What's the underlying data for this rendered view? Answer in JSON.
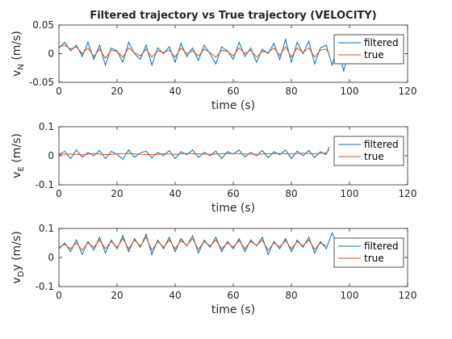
{
  "chart_data": [
    {
      "type": "line",
      "title": "Filtered trajectory vs True trajectory (VELOCITY)",
      "xlabel": "time (s)",
      "ylabel": {
        "main": "v",
        "sub": "N",
        "rest": " (m/s)"
      },
      "xlim": [
        0,
        120
      ],
      "ylim": [
        -0.05,
        0.05
      ],
      "xticks": [
        0,
        20,
        40,
        60,
        80,
        100,
        120
      ],
      "yticks": [
        -0.05,
        0,
        0.05
      ],
      "ytick_labels": [
        "-0.05",
        "0",
        "0.05"
      ],
      "legend": "top-right",
      "grid": false,
      "series": [
        {
          "name": "filtered",
          "color": "#0072BD",
          "x": [
            0,
            2,
            4,
            6,
            8,
            10,
            12,
            14,
            16,
            18,
            20,
            22,
            24,
            26,
            28,
            30,
            32,
            34,
            36,
            38,
            40,
            42,
            44,
            46,
            48,
            50,
            52,
            54,
            56,
            58,
            60,
            62,
            64,
            66,
            68,
            70,
            72,
            74,
            76,
            78,
            80,
            82,
            84,
            86,
            88,
            90,
            92,
            94,
            96,
            98,
            100,
            102,
            104,
            105
          ],
          "y": [
            0.01,
            0.02,
            0.005,
            0.015,
            -0.005,
            0.02,
            -0.01,
            0.015,
            -0.02,
            0.01,
            0.005,
            -0.015,
            0.02,
            0.0,
            -0.01,
            0.015,
            -0.02,
            0.01,
            0.0,
            0.012,
            -0.015,
            0.018,
            -0.005,
            0.01,
            -0.012,
            0.015,
            0.0,
            -0.018,
            0.012,
            0.005,
            -0.01,
            0.02,
            -0.005,
            0.01,
            -0.015,
            0.008,
            0.0,
            0.018,
            -0.01,
            0.025,
            -0.015,
            0.02,
            0.0,
            0.022,
            -0.018,
            0.01,
            0.015,
            -0.02,
            0.012,
            -0.03,
            0.005,
            -0.015,
            0.0,
            0.005
          ]
        },
        {
          "name": "true",
          "color": "#D95319",
          "x": [
            0,
            2,
            4,
            6,
            8,
            10,
            12,
            14,
            16,
            18,
            20,
            22,
            24,
            26,
            28,
            30,
            32,
            34,
            36,
            38,
            40,
            42,
            44,
            46,
            48,
            50,
            52,
            54,
            56,
            58,
            60,
            62,
            64,
            66,
            68,
            70,
            72,
            74,
            76,
            78,
            80,
            82,
            84,
            86,
            88,
            90,
            92,
            93
          ],
          "y": [
            0.012,
            0.015,
            0.008,
            0.012,
            0.0,
            0.01,
            -0.005,
            0.008,
            -0.008,
            0.006,
            0.004,
            -0.006,
            0.01,
            0.002,
            -0.004,
            0.008,
            -0.006,
            0.005,
            0.002,
            0.006,
            -0.006,
            0.01,
            0.0,
            0.005,
            -0.004,
            0.008,
            0.002,
            -0.006,
            0.006,
            0.004,
            -0.004,
            0.01,
            0.0,
            0.006,
            -0.006,
            0.004,
            0.002,
            0.01,
            -0.003,
            0.012,
            -0.006,
            0.01,
            0.002,
            0.01,
            -0.006,
            0.006,
            0.008,
            0.0
          ]
        }
      ]
    },
    {
      "type": "line",
      "title": "",
      "xlabel": "time (s)",
      "ylabel": {
        "main": "v",
        "sub": "E",
        "rest": " (m/s)"
      },
      "xlim": [
        0,
        120
      ],
      "ylim": [
        -0.1,
        0.1
      ],
      "xticks": [
        0,
        20,
        40,
        60,
        80,
        100,
        120
      ],
      "yticks": [
        -0.1,
        0,
        0.1
      ],
      "ytick_labels": [
        "-0.1",
        "0",
        "0.1"
      ],
      "legend": "top-right",
      "grid": false,
      "series": [
        {
          "name": "filtered",
          "color": "#0072BD",
          "x": [
            0,
            2,
            4,
            6,
            8,
            10,
            12,
            14,
            16,
            18,
            20,
            22,
            24,
            26,
            28,
            30,
            32,
            34,
            36,
            38,
            40,
            42,
            44,
            46,
            48,
            50,
            52,
            54,
            56,
            58,
            60,
            62,
            64,
            66,
            68,
            70,
            72,
            74,
            76,
            78,
            80,
            82,
            84,
            86,
            88,
            90,
            92,
            93
          ],
          "y": [
            0.005,
            0.015,
            -0.01,
            0.02,
            -0.005,
            0.012,
            0.0,
            0.018,
            -0.01,
            0.015,
            0.005,
            -0.012,
            0.02,
            -0.005,
            0.01,
            0.016,
            -0.008,
            0.012,
            0.0,
            0.018,
            -0.01,
            0.014,
            0.004,
            0.02,
            -0.006,
            0.012,
            0.0,
            0.016,
            -0.01,
            0.014,
            0.006,
            0.02,
            -0.004,
            0.012,
            0.0,
            0.018,
            -0.006,
            0.014,
            0.004,
            0.02,
            -0.01,
            0.016,
            0.0,
            0.018,
            -0.006,
            0.014,
            0.004,
            0.03
          ]
        },
        {
          "name": "true",
          "color": "#D95319",
          "x": [
            0,
            4,
            8,
            12,
            16,
            20,
            24,
            28,
            32,
            36,
            40,
            44,
            48,
            52,
            56,
            60,
            64,
            68,
            72,
            76,
            80,
            84,
            88,
            92,
            93
          ],
          "y": [
            0.004,
            0.006,
            0.003,
            0.008,
            0.004,
            0.006,
            0.008,
            0.005,
            0.004,
            0.007,
            0.005,
            0.008,
            0.006,
            0.005,
            0.007,
            0.008,
            0.006,
            0.005,
            0.007,
            0.008,
            0.006,
            0.009,
            0.007,
            0.01,
            0.02
          ]
        }
      ]
    },
    {
      "type": "line",
      "title": "",
      "xlabel": "time (s)",
      "ylabel": {
        "main": "v",
        "sub": "D",
        "rest": "y (m/s)"
      },
      "xlim": [
        0,
        120
      ],
      "ylim": [
        -0.1,
        0.1
      ],
      "xticks": [
        0,
        20,
        40,
        60,
        80,
        100,
        120
      ],
      "yticks": [
        -0.1,
        0,
        0.1
      ],
      "ytick_labels": [
        "-0.1",
        "0",
        "0.1"
      ],
      "legend": "top-right",
      "grid": false,
      "series": [
        {
          "name": "filtered",
          "color": "#0072BD",
          "x": [
            0,
            2,
            4,
            6,
            8,
            10,
            12,
            14,
            16,
            18,
            20,
            22,
            24,
            26,
            28,
            30,
            32,
            34,
            36,
            38,
            40,
            42,
            44,
            46,
            48,
            50,
            52,
            54,
            56,
            58,
            60,
            62,
            64,
            66,
            68,
            70,
            72,
            74,
            76,
            78,
            80,
            82,
            84,
            86,
            88,
            90,
            92,
            94,
            96,
            98,
            100,
            102,
            104
          ],
          "y": [
            0.03,
            0.05,
            0.02,
            0.06,
            0.01,
            0.055,
            0.025,
            0.07,
            0.015,
            0.06,
            0.03,
            0.075,
            0.02,
            0.065,
            0.035,
            0.08,
            0.01,
            0.06,
            0.03,
            0.07,
            0.02,
            0.065,
            0.04,
            0.075,
            0.015,
            0.06,
            0.035,
            0.07,
            0.02,
            0.055,
            0.03,
            0.065,
            0.02,
            0.06,
            0.04,
            0.07,
            0.01,
            0.055,
            0.03,
            0.065,
            0.02,
            0.06,
            0.035,
            0.07,
            0.015,
            0.055,
            0.03,
            0.085,
            0.04,
            0.06,
            0.05,
            0.065,
            0.055
          ]
        },
        {
          "name": "true",
          "color": "#D95319",
          "x": [
            0,
            2,
            4,
            6,
            8,
            10,
            12,
            14,
            16,
            18,
            20,
            22,
            24,
            26,
            28,
            30,
            32,
            34,
            36,
            38,
            40,
            42,
            44,
            46,
            48,
            50,
            52,
            54,
            56,
            58,
            60,
            62,
            64,
            66,
            68,
            70,
            72,
            74,
            76,
            78,
            80,
            82,
            84,
            86,
            88,
            90,
            92
          ],
          "y": [
            0.035,
            0.045,
            0.03,
            0.05,
            0.025,
            0.05,
            0.035,
            0.06,
            0.03,
            0.055,
            0.035,
            0.065,
            0.03,
            0.06,
            0.04,
            0.07,
            0.025,
            0.055,
            0.035,
            0.06,
            0.03,
            0.058,
            0.042,
            0.065,
            0.028,
            0.055,
            0.04,
            0.06,
            0.03,
            0.05,
            0.036,
            0.058,
            0.03,
            0.055,
            0.042,
            0.06,
            0.025,
            0.05,
            0.036,
            0.058,
            0.03,
            0.055,
            0.04,
            0.06,
            0.028,
            0.05,
            0.04
          ]
        }
      ]
    }
  ]
}
